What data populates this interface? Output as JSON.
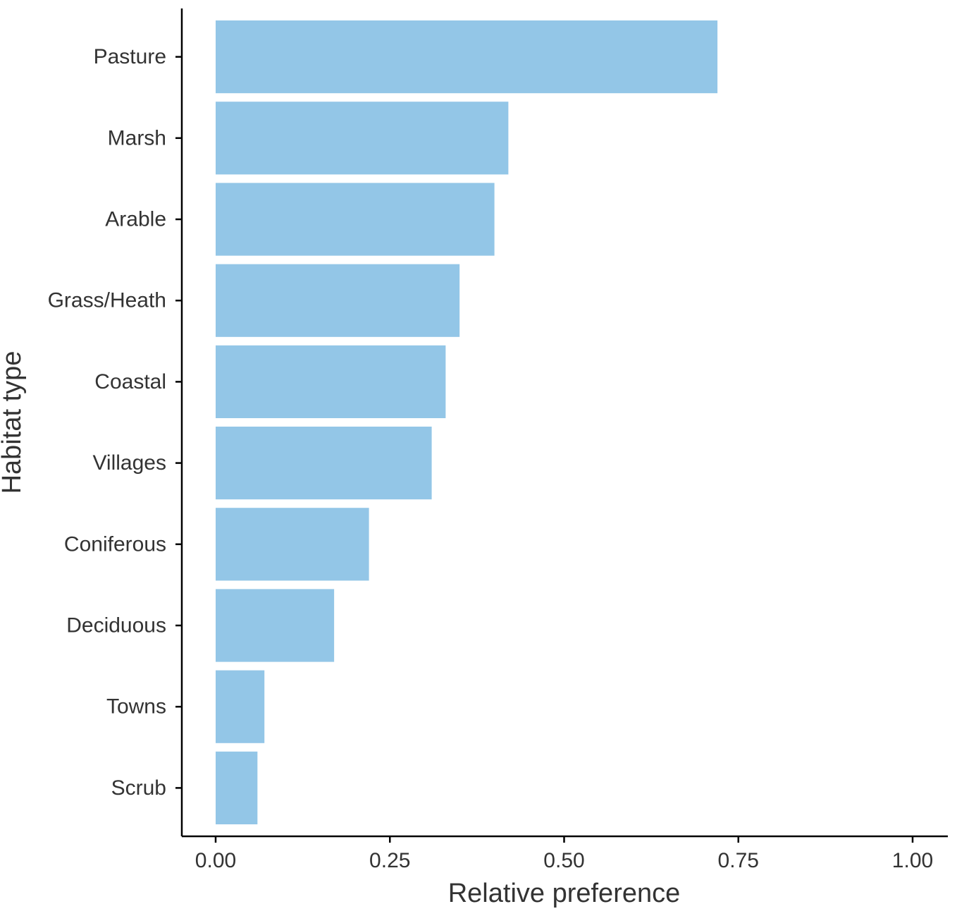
{
  "chart_data": {
    "type": "bar",
    "orientation": "horizontal",
    "categories": [
      "Pasture",
      "Marsh",
      "Arable",
      "Grass/Heath",
      "Coastal",
      "Villages",
      "Coniferous",
      "Deciduous",
      "Towns",
      "Scrub"
    ],
    "values": [
      0.72,
      0.42,
      0.4,
      0.35,
      0.33,
      0.31,
      0.22,
      0.17,
      0.07,
      0.06
    ],
    "xlabel": "Relative preference",
    "ylabel": "Habitat type",
    "xlim": [
      0,
      1.0
    ],
    "x_ticks": [
      "0.00",
      "0.25",
      "0.50",
      "0.75",
      "1.00"
    ],
    "x_tick_values": [
      0,
      0.25,
      0.5,
      0.75,
      1.0
    ],
    "grid": false,
    "bar_color": "#93c6e7",
    "axis_color": "#000000",
    "text_color": "#333333"
  }
}
